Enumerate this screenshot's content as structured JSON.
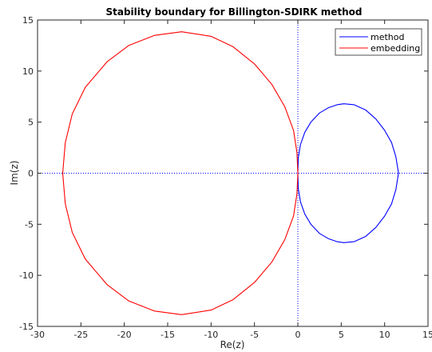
{
  "chart_data": {
    "type": "line",
    "title": "Stability boundary for Billington-SDIRK method",
    "xlabel": "Re(z)",
    "ylabel": "Im(z)",
    "xlim": [
      -30,
      15
    ],
    "ylim": [
      -15,
      15
    ],
    "xticks": [
      -30,
      -25,
      -20,
      -15,
      -10,
      -5,
      0,
      5,
      10,
      15
    ],
    "yticks": [
      -15,
      -10,
      -5,
      0,
      5,
      10,
      15
    ],
    "grid": false,
    "legend_position": "top-right",
    "reference_lines": [
      {
        "orientation": "horizontal",
        "value": 0,
        "color": "#0000ff",
        "style": "dotted"
      },
      {
        "orientation": "vertical",
        "value": 0,
        "color": "#0000ff",
        "style": "dotted"
      }
    ],
    "series": [
      {
        "name": "method",
        "color": "#0000ff",
        "x": [
          0.0,
          0.05,
          0.3,
          0.8,
          1.5,
          2.5,
          3.5,
          4.5,
          5.3,
          6.5,
          7.8,
          9.0,
          10.0,
          10.8,
          11.3,
          11.6,
          11.3,
          10.8,
          10.0,
          9.0,
          7.8,
          6.5,
          5.3,
          4.5,
          3.5,
          2.5,
          1.5,
          0.8,
          0.3,
          0.05,
          0.0
        ],
        "y": [
          0.0,
          1.5,
          2.8,
          4.0,
          5.0,
          5.9,
          6.4,
          6.7,
          6.8,
          6.7,
          6.2,
          5.3,
          4.2,
          3.0,
          1.6,
          0.0,
          -1.6,
          -3.0,
          -4.2,
          -5.3,
          -6.2,
          -6.7,
          -6.8,
          -6.7,
          -6.4,
          -5.9,
          -5.0,
          -4.0,
          -2.8,
          -1.5,
          0.0
        ]
      },
      {
        "name": "embedding",
        "color": "#ff0000",
        "x": [
          0.0,
          -0.1,
          -0.5,
          -1.5,
          -3.0,
          -5.0,
          -7.5,
          -10.0,
          -13.4,
          -16.5,
          -19.5,
          -22.0,
          -24.5,
          -26.0,
          -26.8,
          -27.1,
          -26.8,
          -26.0,
          -24.5,
          -22.0,
          -19.5,
          -16.5,
          -13.4,
          -10.0,
          -7.5,
          -5.0,
          -3.0,
          -1.5,
          -0.5,
          -0.1,
          0.0
        ],
        "y": [
          0.0,
          2.0,
          4.2,
          6.5,
          8.7,
          10.7,
          12.4,
          13.4,
          13.85,
          13.5,
          12.5,
          10.9,
          8.4,
          5.8,
          3.0,
          0.0,
          -3.0,
          -5.8,
          -8.4,
          -10.9,
          -12.5,
          -13.5,
          -13.85,
          -13.4,
          -12.4,
          -10.7,
          -8.7,
          -6.5,
          -4.2,
          -2.0,
          0.0
        ]
      }
    ]
  }
}
